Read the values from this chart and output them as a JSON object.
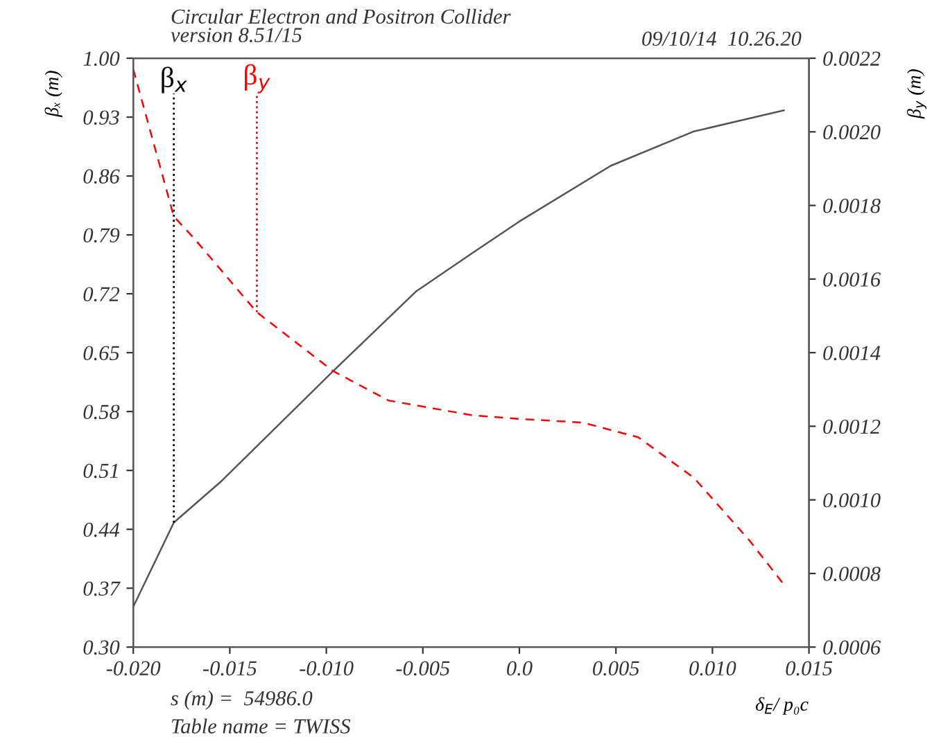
{
  "chart_data": {
    "type": "line",
    "title": "Circular Electron and Positron Collider",
    "subtitle": "version 8.51/15",
    "xlabel": "δ$_{E}$/ p₀c",
    "ylabel": "βₓ (m)",
    "y2label": "β$_{y}$ (m)",
    "annotations": [
      "09/10/14  10.26.20",
      "s (m) =  54986.0",
      "Table name = TWISS"
    ],
    "series": [
      {
        "color": "#555555",
        "line_style": "solid",
        "x": [
          -0.02,
          -0.0179,
          -0.0154,
          -0.00965,
          -0.00534,
          -0.00246,
          0.0,
          0.00472,
          0.00904,
          0.0137
        ],
        "values": [
          0.348,
          0.448,
          0.498,
          0.628,
          0.723,
          0.768,
          0.806,
          0.872,
          0.913,
          0.938
        ]
      },
      {
        "color": "#ff0000",
        "line_style": "dashed",
        "axis": "y2",
        "x": [
          -0.02,
          -0.0179,
          -0.01684,
          -0.0136,
          -0.00965,
          -0.00678,
          -0.00246,
          0.0,
          0.00329,
          0.00616,
          0.00904,
          0.01191,
          0.0137
        ],
        "values": [
          0.00217,
          0.00177,
          0.00171,
          0.00151,
          0.00135,
          0.00127,
          0.00123,
          0.00122,
          0.00121,
          0.00117,
          0.00106,
          0.00089,
          0.00077
        ]
      }
    ],
    "ref_lines": [
      {
        "axis": "x",
        "value": -0.0179,
        "label": "β$_{x}$",
        "color": "#000000",
        "line_style": "dotted"
      },
      {
        "axis": "x",
        "value": -0.0136,
        "label": "β$_{y}$",
        "color": "#ff0000",
        "line_style": "dotted"
      }
    ],
    "xlim": [
      -0.02,
      0.015
    ],
    "xticks": [
      {
        "value": -0.02,
        "label": "-0.020"
      },
      {
        "value": -0.015,
        "label": "-0.015"
      },
      {
        "value": -0.01,
        "label": "-0.010"
      },
      {
        "value": -0.005,
        "label": "-0.005"
      },
      {
        "value": 0.0,
        "label": "0.0"
      },
      {
        "value": 0.005,
        "label": "0.005"
      },
      {
        "value": 0.01,
        "label": "0.010"
      },
      {
        "value": 0.015,
        "label": "0.015"
      }
    ],
    "ylim": [
      0.3,
      1.0
    ],
    "yticks": [
      {
        "value": 0.3,
        "label": "0.30"
      },
      0.37,
      0.44,
      0.51,
      0.58,
      0.65,
      0.72,
      0.79,
      0.86,
      0.93,
      {
        "value": 1.0,
        "label": "1.00"
      }
    ],
    "y2lim": [
      0.0006,
      0.0022
    ],
    "y2ticks": [
      0.0006,
      0.0008,
      {
        "value": 0.001,
        "label": "0.0010"
      },
      0.0012,
      0.0014,
      0.0016,
      0.0018,
      {
        "value": 0.002,
        "label": "0.0020"
      },
      0.0022
    ],
    "grid": false
  }
}
